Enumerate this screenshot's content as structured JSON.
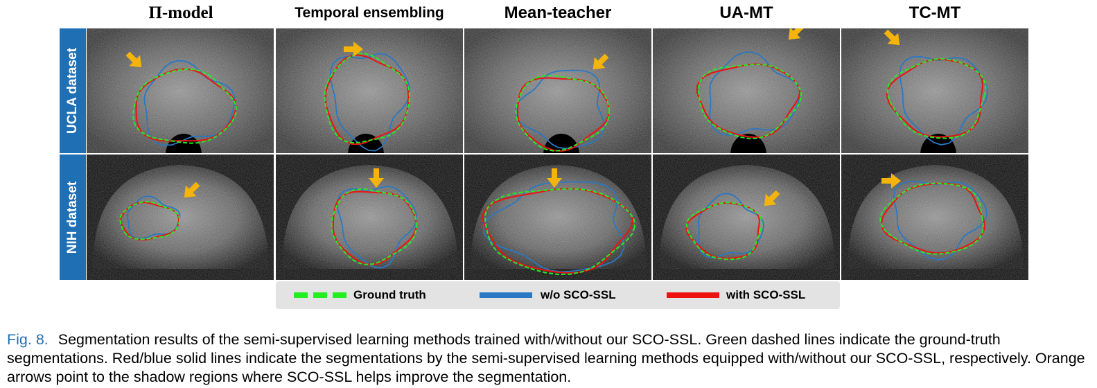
{
  "columns": {
    "c1": "Π-model",
    "c2": "Temporal ensembling",
    "c3": "Mean-teacher",
    "c4": "UA-MT",
    "c5": "TC-MT"
  },
  "rows": {
    "r1": "UCLA dataset",
    "r2": "NIH dataset"
  },
  "legend": {
    "ground_truth": "Ground truth",
    "without": "w/o SCO-SSL",
    "with": "with SCO-SSL"
  },
  "colors": {
    "ground_truth": "#22ee22",
    "without": "#2a78c4",
    "with": "#ee1111",
    "arrow": "#f5b40a",
    "label_bg": "#1f6fb5"
  },
  "caption": {
    "fig": "Fig. 8.",
    "text": "Segmentation results of the semi-supervised learning methods trained with/without our SCO-SSL. Green dashed lines indicate the ground-truth segmentations. Red/blue solid lines indicate the segmentations by the semi-supervised learning methods equipped with/without our SCO-SSL, respectively. Orange arrows point to the shadow regions where SCO-SSL helps improve the segmentation."
  }
}
